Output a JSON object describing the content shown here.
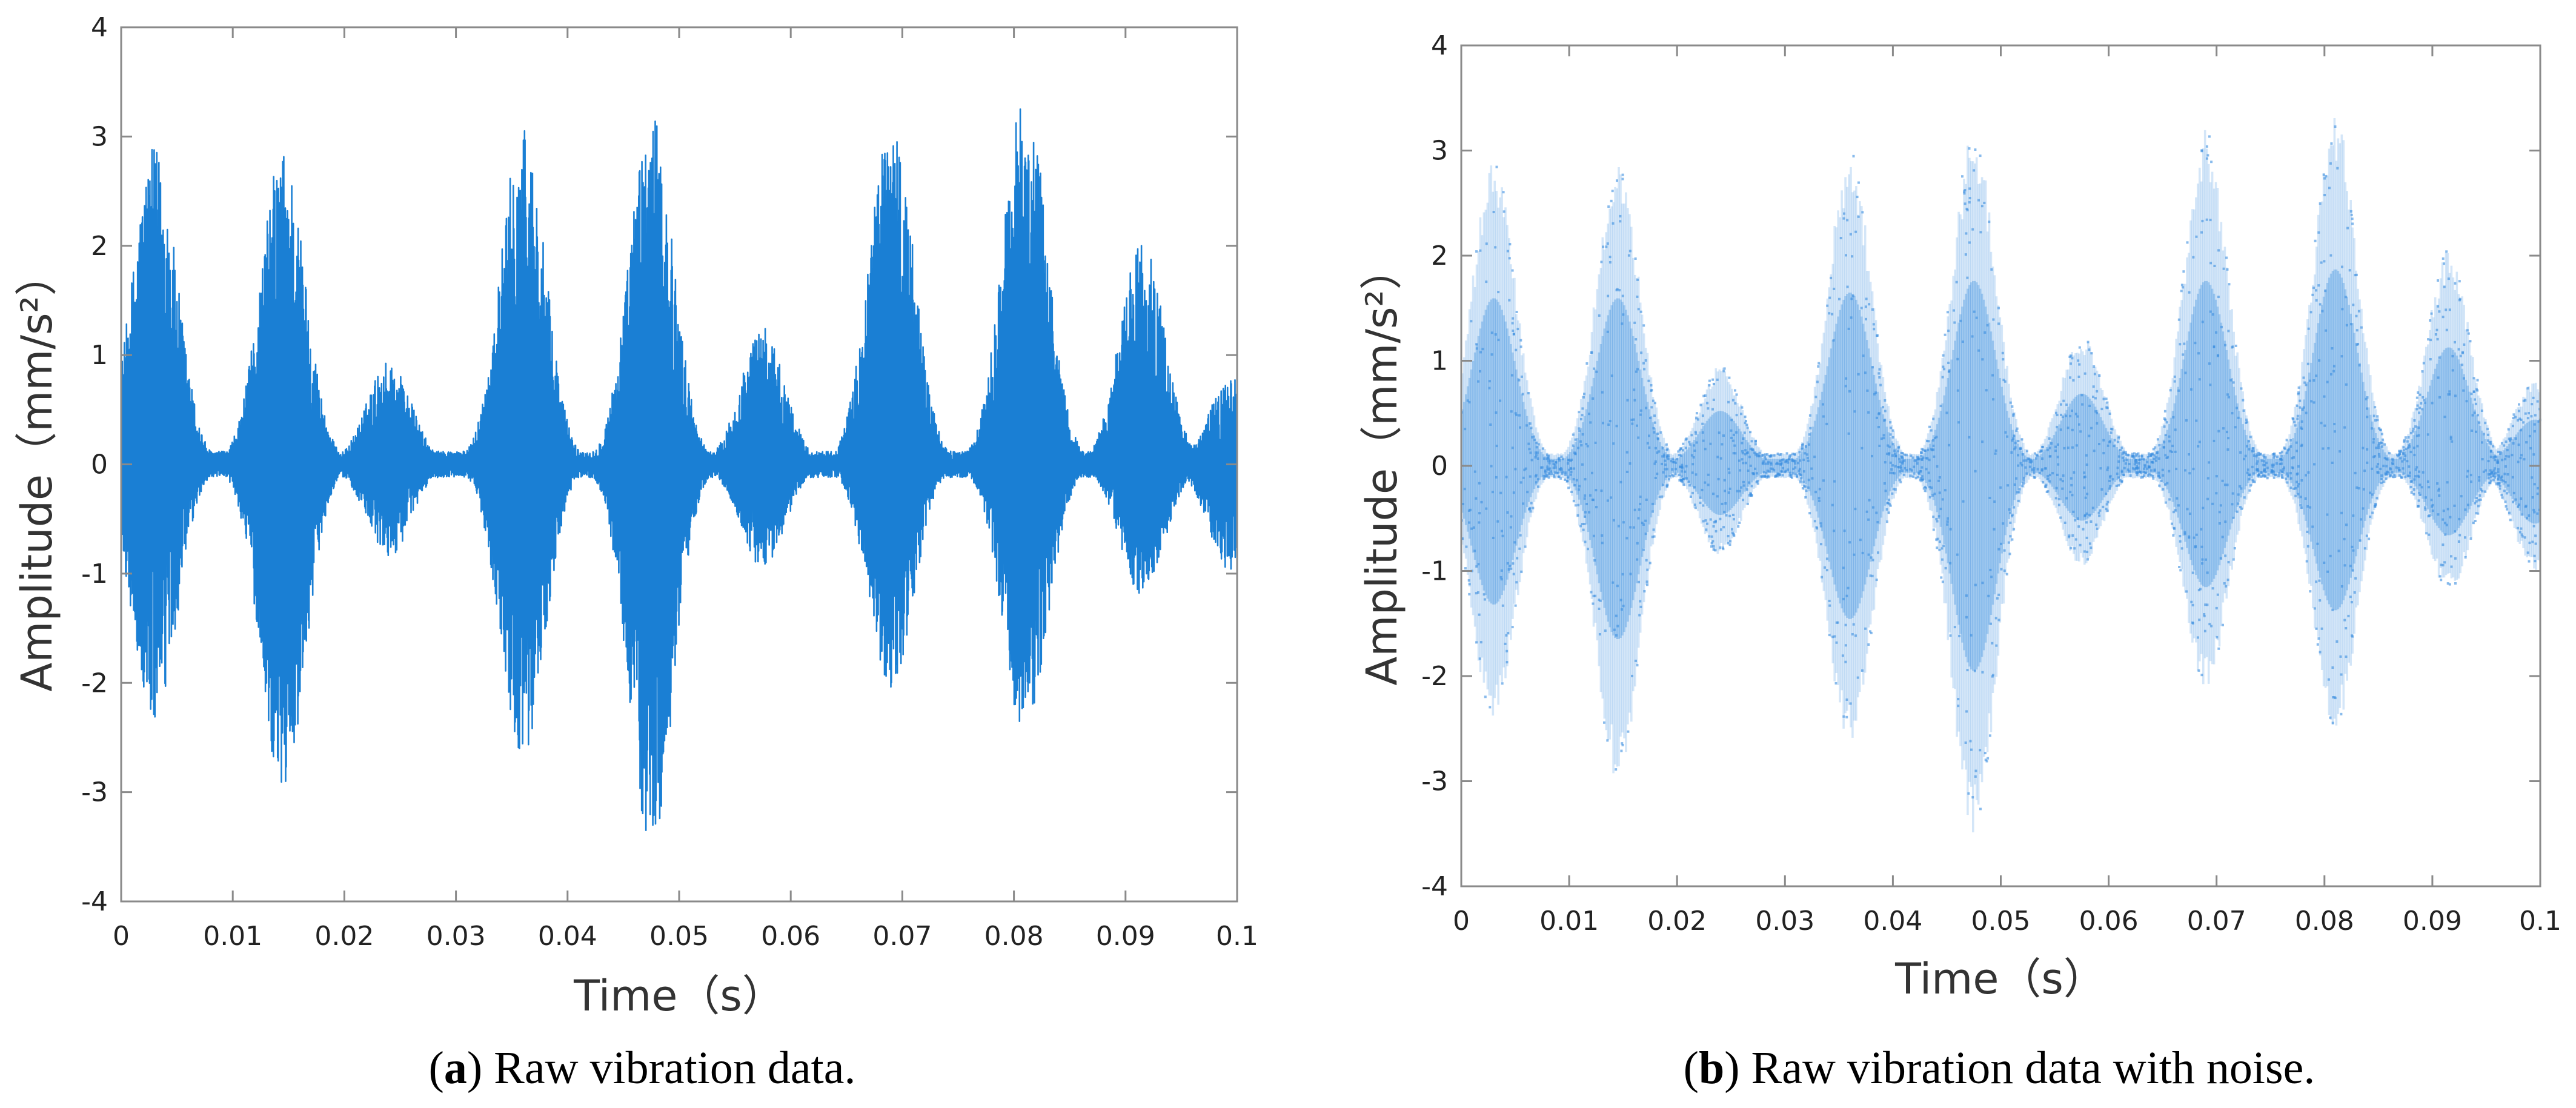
{
  "chart_data": [
    {
      "type": "line",
      "panel_label": "a",
      "caption": "Raw vibration data.",
      "xlabel": "Time（s）",
      "ylabel": "Amplitude（mm/s²）",
      "xlim": [
        0,
        0.1
      ],
      "ylim": [
        -4,
        4
      ],
      "xticks": [
        "0",
        "0.01",
        "0.02",
        "0.03",
        "0.04",
        "0.05",
        "0.06",
        "0.07",
        "0.08",
        "0.09",
        "0.1"
      ],
      "yticks": [
        "-4",
        "-3",
        "-2",
        "-1",
        "0",
        "1",
        "2",
        "3",
        "4"
      ],
      "color": "#1a7fd4",
      "style": "solid line",
      "bursts": [
        {
          "t": 0.003,
          "peak_max": 2.9,
          "peak_min": -2.4
        },
        {
          "t": 0.0145,
          "peak_max": 2.9,
          "peak_min": -3.0
        },
        {
          "t": 0.024,
          "peak_max": 0.95,
          "peak_min": -0.85
        },
        {
          "t": 0.036,
          "peak_max": 3.1,
          "peak_min": -2.65
        },
        {
          "t": 0.0475,
          "peak_max": 3.2,
          "peak_min": -3.55
        },
        {
          "t": 0.0575,
          "peak_max": 1.25,
          "peak_min": -0.95
        },
        {
          "t": 0.069,
          "peak_max": 3.2,
          "peak_min": -2.1
        },
        {
          "t": 0.081,
          "peak_max": 3.4,
          "peak_min": -2.5
        },
        {
          "t": 0.0915,
          "peak_max": 2.05,
          "peak_min": -1.2
        },
        {
          "t": 0.0995,
          "peak_max": 0.8,
          "peak_min": -1.0
        }
      ]
    },
    {
      "type": "line",
      "panel_label": "b",
      "caption": "Raw vibration data with noise.",
      "xlabel": "Time（s）",
      "ylabel": "Amplitude（mm/s²）",
      "xlim": [
        0,
        0.1
      ],
      "ylim": [
        -4,
        4
      ],
      "xticks": [
        "0",
        "0.01",
        "0.02",
        "0.03",
        "0.04",
        "0.05",
        "0.06",
        "0.07",
        "0.08",
        "0.09",
        "0.1"
      ],
      "yticks": [
        "-4",
        "-3",
        "-2",
        "-1",
        "0",
        "1",
        "2",
        "3",
        "4"
      ],
      "color": "#3b8ee0",
      "style": "noisy scatter",
      "bursts": [
        {
          "t": 0.003,
          "peak_max": 2.9,
          "peak_min": -2.4
        },
        {
          "t": 0.0145,
          "peak_max": 2.9,
          "peak_min": -3.0
        },
        {
          "t": 0.024,
          "peak_max": 0.95,
          "peak_min": -0.85
        },
        {
          "t": 0.036,
          "peak_max": 3.0,
          "peak_min": -2.65
        },
        {
          "t": 0.0475,
          "peak_max": 3.2,
          "peak_min": -3.55
        },
        {
          "t": 0.0575,
          "peak_max": 1.25,
          "peak_min": -0.95
        },
        {
          "t": 0.069,
          "peak_max": 3.2,
          "peak_min": -2.1
        },
        {
          "t": 0.081,
          "peak_max": 3.4,
          "peak_min": -2.5
        },
        {
          "t": 0.0915,
          "peak_max": 2.05,
          "peak_min": -1.2
        },
        {
          "t": 0.0995,
          "peak_max": 0.8,
          "peak_min": -1.0
        }
      ]
    }
  ]
}
